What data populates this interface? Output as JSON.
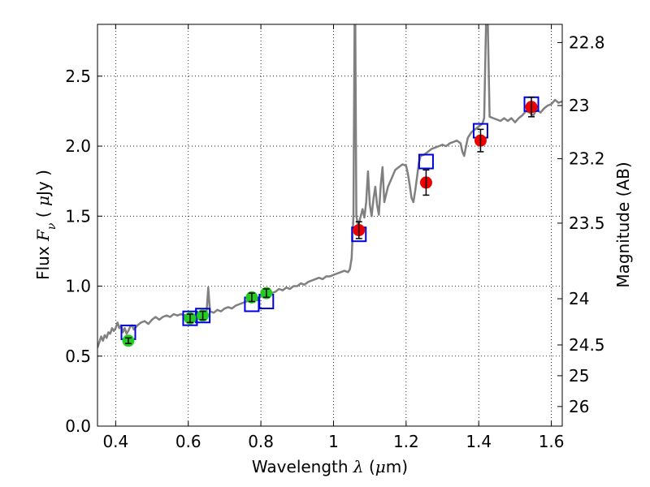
{
  "chart_data": {
    "type": "scatter",
    "title": "",
    "xlabel": "Wavelength  λ (μm)",
    "xlabel_parts": {
      "main": "Wavelength  ",
      "var": "λ",
      "open": " (",
      "unit_mu": "μ",
      "unit": "m)"
    },
    "ylabel": "Flux  Fν  ( μJy )",
    "ylabel_parts": {
      "main": "Flux  ",
      "var": "F",
      "sub": "ν",
      "open": "  ( ",
      "unit_mu": "μ",
      "unit": "Jy )"
    },
    "y2label": "Magnitude (AB)",
    "xlim": [
      0.35,
      1.63
    ],
    "ylim": [
      0.0,
      2.87
    ],
    "grid": true,
    "x_ticks": [
      0.4,
      0.6,
      0.8,
      1.0,
      1.2,
      1.4,
      1.6
    ],
    "x_tick_labels": [
      "0.4",
      "0.6",
      "0.8",
      "1",
      "1.2",
      "1.4",
      "1.6"
    ],
    "y_ticks": [
      0.0,
      0.5,
      1.0,
      1.5,
      2.0,
      2.5
    ],
    "y_tick_labels": [
      "0.0",
      "0.5",
      "1.0",
      "1.5",
      "2.0",
      "2.5"
    ],
    "y2_ticks": [
      {
        "flux": 2.74,
        "label": "22.8"
      },
      {
        "flux": 2.29,
        "label": "23"
      },
      {
        "flux": 1.91,
        "label": "23.2"
      },
      {
        "flux": 1.45,
        "label": "23.5"
      },
      {
        "flux": 0.91,
        "label": "24"
      },
      {
        "flux": 0.58,
        "label": "24.5"
      },
      {
        "flux": 0.36,
        "label": "25"
      },
      {
        "flux": 0.14,
        "label": "26"
      }
    ],
    "series": [
      {
        "type": "line",
        "color": "#808080",
        "points": [
          [
            0.35,
            0.56
          ],
          [
            0.355,
            0.6
          ],
          [
            0.36,
            0.64
          ],
          [
            0.365,
            0.61
          ],
          [
            0.37,
            0.65
          ],
          [
            0.375,
            0.63
          ],
          [
            0.38,
            0.67
          ],
          [
            0.385,
            0.66
          ],
          [
            0.39,
            0.7
          ],
          [
            0.395,
            0.68
          ],
          [
            0.4,
            0.7
          ],
          [
            0.405,
            0.74
          ],
          [
            0.41,
            0.7
          ],
          [
            0.415,
            0.72
          ],
          [
            0.42,
            0.67
          ],
          [
            0.425,
            0.7
          ],
          [
            0.43,
            0.66
          ],
          [
            0.435,
            0.68
          ],
          [
            0.44,
            0.71
          ],
          [
            0.445,
            0.72
          ],
          [
            0.45,
            0.69
          ],
          [
            0.46,
            0.72
          ],
          [
            0.47,
            0.74
          ],
          [
            0.48,
            0.75
          ],
          [
            0.49,
            0.73
          ],
          [
            0.5,
            0.76
          ],
          [
            0.51,
            0.78
          ],
          [
            0.52,
            0.76
          ],
          [
            0.53,
            0.78
          ],
          [
            0.54,
            0.79
          ],
          [
            0.55,
            0.78
          ],
          [
            0.56,
            0.8
          ],
          [
            0.57,
            0.79
          ],
          [
            0.58,
            0.8
          ],
          [
            0.59,
            0.79
          ],
          [
            0.6,
            0.8
          ],
          [
            0.61,
            0.78
          ],
          [
            0.62,
            0.8
          ],
          [
            0.63,
            0.79
          ],
          [
            0.64,
            0.81
          ],
          [
            0.645,
            0.79
          ],
          [
            0.65,
            0.8
          ],
          [
            0.655,
            0.99
          ],
          [
            0.66,
            0.82
          ],
          [
            0.67,
            0.81
          ],
          [
            0.68,
            0.83
          ],
          [
            0.69,
            0.82
          ],
          [
            0.7,
            0.84
          ],
          [
            0.71,
            0.85
          ],
          [
            0.72,
            0.84
          ],
          [
            0.73,
            0.86
          ],
          [
            0.74,
            0.87
          ],
          [
            0.75,
            0.88
          ],
          [
            0.76,
            0.89
          ],
          [
            0.77,
            0.9
          ],
          [
            0.78,
            0.91
          ],
          [
            0.79,
            0.9
          ],
          [
            0.8,
            0.93
          ],
          [
            0.81,
            0.94
          ],
          [
            0.82,
            0.93
          ],
          [
            0.83,
            0.95
          ],
          [
            0.84,
            0.96
          ],
          [
            0.85,
            0.98
          ],
          [
            0.86,
            0.97
          ],
          [
            0.87,
            0.99
          ],
          [
            0.88,
            0.98
          ],
          [
            0.89,
            1.0
          ],
          [
            0.9,
            1.0
          ],
          [
            0.91,
            1.02
          ],
          [
            0.92,
            1.01
          ],
          [
            0.93,
            1.03
          ],
          [
            0.94,
            1.04
          ],
          [
            0.95,
            1.05
          ],
          [
            0.96,
            1.06
          ],
          [
            0.97,
            1.05
          ],
          [
            0.98,
            1.07
          ],
          [
            0.99,
            1.07
          ],
          [
            1.0,
            1.08
          ],
          [
            1.01,
            1.09
          ],
          [
            1.02,
            1.1
          ],
          [
            1.03,
            1.11
          ],
          [
            1.04,
            1.1
          ],
          [
            1.045,
            1.12
          ],
          [
            1.05,
            1.2
          ],
          [
            1.055,
            1.5
          ],
          [
            1.058,
            2.87
          ],
          [
            1.06,
            2.87
          ],
          [
            1.063,
            1.5
          ],
          [
            1.067,
            1.44
          ],
          [
            1.07,
            1.45
          ],
          [
            1.08,
            1.55
          ],
          [
            1.085,
            1.49
          ],
          [
            1.09,
            1.6
          ],
          [
            1.095,
            1.82
          ],
          [
            1.1,
            1.58
          ],
          [
            1.105,
            1.5
          ],
          [
            1.11,
            1.62
          ],
          [
            1.115,
            1.71
          ],
          [
            1.12,
            1.58
          ],
          [
            1.125,
            1.51
          ],
          [
            1.13,
            1.72
          ],
          [
            1.135,
            1.85
          ],
          [
            1.14,
            1.6
          ],
          [
            1.15,
            1.71
          ],
          [
            1.16,
            1.77
          ],
          [
            1.17,
            1.83
          ],
          [
            1.18,
            1.85
          ],
          [
            1.19,
            1.87
          ],
          [
            1.2,
            1.86
          ],
          [
            1.205,
            1.8
          ],
          [
            1.21,
            1.72
          ],
          [
            1.215,
            1.63
          ],
          [
            1.22,
            1.6
          ],
          [
            1.225,
            1.68
          ],
          [
            1.23,
            1.78
          ],
          [
            1.235,
            1.88
          ],
          [
            1.24,
            1.93
          ],
          [
            1.25,
            1.94
          ],
          [
            1.26,
            1.96
          ],
          [
            1.27,
            1.98
          ],
          [
            1.28,
            1.99
          ],
          [
            1.29,
            2.0
          ],
          [
            1.3,
            2.01
          ],
          [
            1.31,
            2.0
          ],
          [
            1.32,
            2.02
          ],
          [
            1.33,
            2.03
          ],
          [
            1.34,
            2.04
          ],
          [
            1.35,
            2.02
          ],
          [
            1.355,
            1.96
          ],
          [
            1.36,
            1.93
          ],
          [
            1.365,
            2.0
          ],
          [
            1.37,
            2.06
          ],
          [
            1.375,
            2.08
          ],
          [
            1.38,
            2.1
          ],
          [
            1.39,
            2.12
          ],
          [
            1.4,
            2.14
          ],
          [
            1.41,
            2.16
          ],
          [
            1.415,
            2.2
          ],
          [
            1.42,
            2.87
          ],
          [
            1.425,
            2.87
          ],
          [
            1.43,
            2.21
          ],
          [
            1.44,
            2.2
          ],
          [
            1.45,
            2.19
          ],
          [
            1.46,
            2.18
          ],
          [
            1.47,
            2.2
          ],
          [
            1.48,
            2.18
          ],
          [
            1.49,
            2.2
          ],
          [
            1.5,
            2.17
          ],
          [
            1.51,
            2.2
          ],
          [
            1.52,
            2.22
          ],
          [
            1.53,
            2.25
          ],
          [
            1.54,
            2.24
          ],
          [
            1.55,
            2.22
          ],
          [
            1.56,
            2.26
          ],
          [
            1.57,
            2.24
          ],
          [
            1.58,
            2.27
          ],
          [
            1.59,
            2.29
          ],
          [
            1.6,
            2.3
          ],
          [
            1.61,
            2.33
          ],
          [
            1.62,
            2.31
          ],
          [
            1.63,
            2.32
          ]
        ]
      },
      {
        "type": "scatter-square",
        "color": "#0000dd",
        "points": [
          {
            "x": 0.435,
            "y": 0.67
          },
          {
            "x": 0.605,
            "y": 0.77
          },
          {
            "x": 0.64,
            "y": 0.79
          },
          {
            "x": 0.775,
            "y": 0.87
          },
          {
            "x": 0.815,
            "y": 0.89
          },
          {
            "x": 1.07,
            "y": 1.37
          },
          {
            "x": 1.255,
            "y": 1.89
          },
          {
            "x": 1.405,
            "y": 2.11
          },
          {
            "x": 1.545,
            "y": 2.3
          }
        ]
      },
      {
        "type": "scatter-circle-errorbar",
        "color": "#22cc22",
        "points": [
          {
            "x": 0.435,
            "y": 0.61,
            "err": 0.02
          },
          {
            "x": 0.605,
            "y": 0.77,
            "err": 0.03
          },
          {
            "x": 0.64,
            "y": 0.79,
            "err": 0.03
          },
          {
            "x": 0.775,
            "y": 0.92,
            "err": 0.03
          },
          {
            "x": 0.815,
            "y": 0.95,
            "err": 0.03
          }
        ]
      },
      {
        "type": "scatter-circle-errorbar",
        "color": "#ee0000",
        "points": [
          {
            "x": 1.07,
            "y": 1.4,
            "err": 0.06
          },
          {
            "x": 1.255,
            "y": 1.74,
            "err": 0.09
          },
          {
            "x": 1.405,
            "y": 2.04,
            "err": 0.08
          },
          {
            "x": 1.545,
            "y": 2.28,
            "err": 0.07
          }
        ]
      }
    ]
  }
}
